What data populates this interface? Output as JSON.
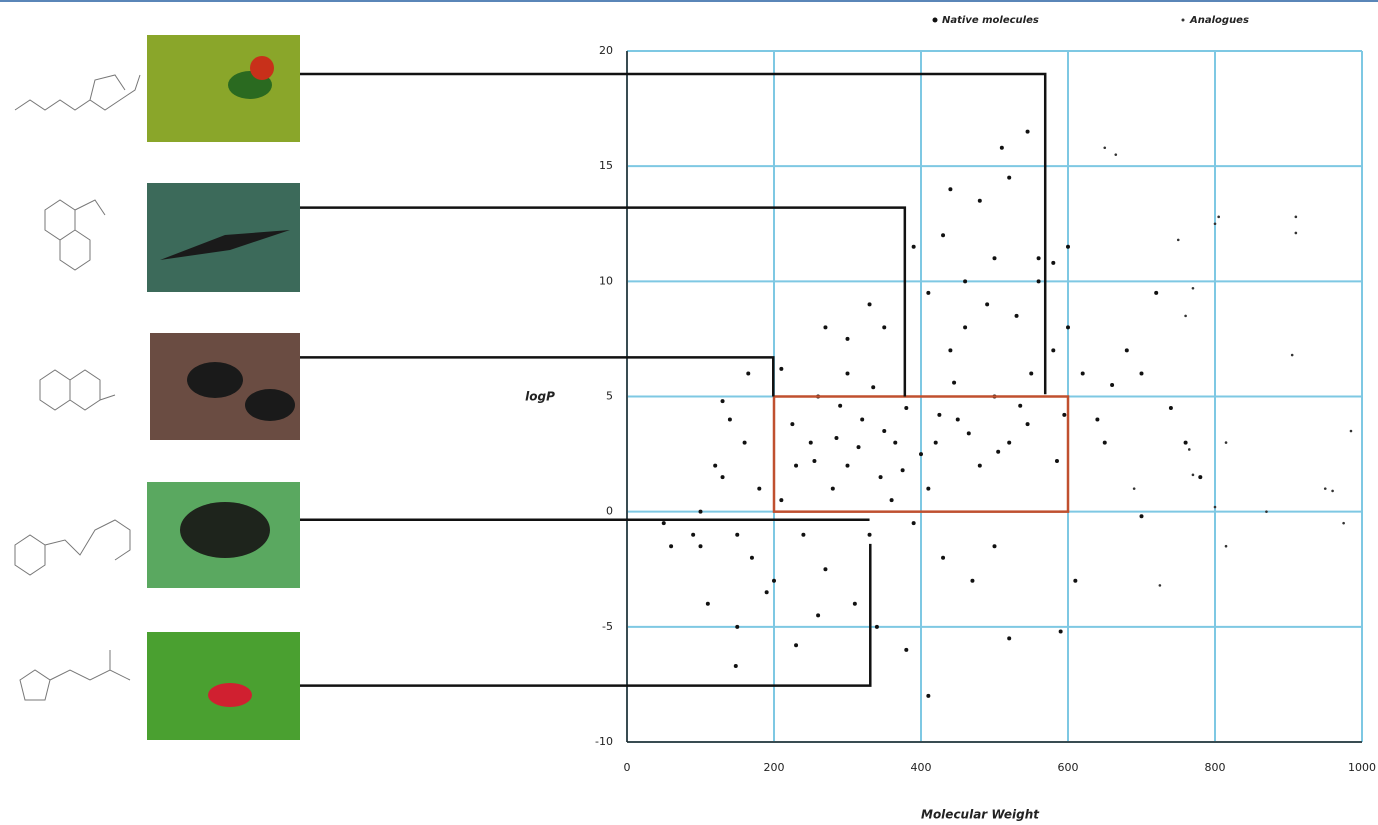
{
  "chart_data": {
    "type": "scatter",
    "x_label": "Molecular Weight",
    "y_label": "logP",
    "xlim": [
      0,
      1000
    ],
    "ylim": [
      -10,
      20
    ],
    "xticks": [
      0,
      200,
      400,
      600,
      800,
      1000
    ],
    "yticks": [
      -10,
      -5,
      0,
      5,
      10,
      15,
      20
    ],
    "grid": true,
    "grid_color": "#7ec8e3",
    "legend": "top",
    "highlight": {
      "x": [
        200,
        600
      ],
      "y": [
        0,
        5
      ],
      "color": "#c0502f"
    },
    "callouts": [
      {
        "x": 569,
        "y": 19,
        "end_y": 5.1
      },
      {
        "x": 378,
        "y": 13.2,
        "end_y": 5
      },
      {
        "x": 199,
        "y": 6.7,
        "end_y": 5
      },
      {
        "x": 330,
        "y": -0.35,
        "end_y": -0.35
      },
      {
        "x": 331,
        "y": -7.55,
        "end_y": -1.4
      }
    ],
    "series": [
      {
        "name": "Native molecules",
        "color": "#111111",
        "x": [
          250,
          300,
          320,
          350,
          280,
          400,
          380,
          420,
          450,
          480,
          500,
          520,
          550,
          300,
          260,
          230,
          210,
          180,
          160,
          150,
          140,
          120,
          100,
          90,
          130,
          170,
          200,
          240,
          270,
          310,
          330,
          360,
          390,
          410,
          440,
          460,
          490,
          530,
          560,
          580,
          600,
          620,
          640,
          660,
          680,
          700,
          720,
          740,
          760,
          780,
          700,
          650,
          610,
          590,
          520,
          500,
          470,
          430,
          380,
          340,
          260,
          230,
          190,
          150,
          148,
          110,
          100,
          60,
          50,
          210,
          165,
          130,
          350,
          300,
          270,
          330,
          410,
          430,
          440,
          480,
          510,
          520,
          545,
          560,
          580,
          600,
          390,
          500,
          460,
          365,
          285,
          345,
          255,
          315,
          375,
          425,
          465,
          505,
          545,
          585,
          225,
          290,
          335,
          445,
          535,
          595,
          410
        ],
        "y": [
          3,
          2,
          4,
          3.5,
          1,
          2.5,
          4.5,
          3,
          4,
          2,
          5,
          3,
          6,
          6,
          5,
          2,
          0.5,
          1,
          3,
          -1,
          4,
          2,
          0,
          -1,
          1.5,
          -2,
          -3,
          -1,
          -2.5,
          -4,
          -1,
          0.5,
          -0.5,
          1,
          7,
          8,
          9,
          8.5,
          10,
          7,
          8,
          6,
          4,
          5.5,
          7,
          6,
          9.5,
          4.5,
          3,
          1.5,
          -0.2,
          3,
          -3,
          -5.2,
          -5.5,
          -1.5,
          -3,
          -2,
          -6,
          -5,
          -4.5,
          -5.8,
          -3.5,
          -5,
          -6.7,
          -4,
          -1.5,
          -1.5,
          -0.5,
          6.2,
          6,
          4.8,
          8,
          7.5,
          8,
          9,
          9.5,
          12,
          14,
          13.5,
          15.8,
          14.5,
          16.5,
          11,
          10.8,
          11.5,
          11.5,
          11,
          10,
          3,
          3.2,
          1.5,
          2.2,
          2.8,
          1.8,
          4.2,
          3.4,
          2.6,
          3.8,
          2.2,
          3.8,
          4.6,
          5.4,
          5.6,
          4.6,
          4.2,
          -8
        ]
      },
      {
        "name": "Analogues",
        "color": "#333333",
        "x": [
          650,
          665,
          800,
          805,
          910,
          910,
          750,
          905,
          985,
          815,
          765,
          770,
          950,
          960,
          800,
          870,
          975,
          815,
          725,
          690,
          760,
          770
        ],
        "y": [
          15.8,
          15.5,
          12.5,
          12.8,
          12.8,
          12.1,
          11.8,
          6.8,
          3.5,
          3,
          2.7,
          1.6,
          1,
          0.9,
          0.2,
          0,
          -0.5,
          -1.5,
          -3.2,
          1,
          8.5,
          9.7
        ]
      }
    ]
  }
}
